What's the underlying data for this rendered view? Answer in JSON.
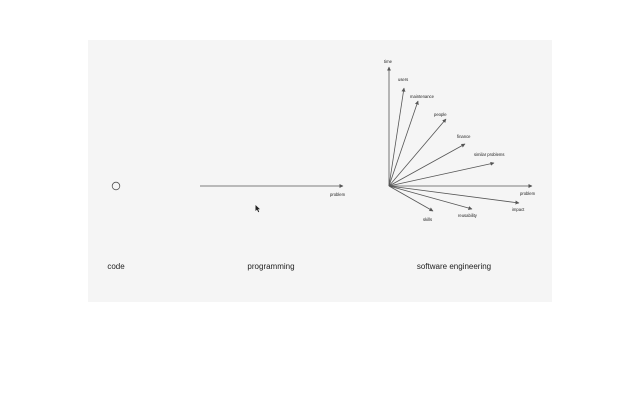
{
  "panels": {
    "code": {
      "caption": "code"
    },
    "programming": {
      "caption": "programming",
      "vector_label": "problem"
    },
    "software_engineering": {
      "caption": "software engineering",
      "vectors": [
        {
          "label": "time"
        },
        {
          "label": "users"
        },
        {
          "label": "maintenance"
        },
        {
          "label": "people"
        },
        {
          "label": "finance"
        },
        {
          "label": "similar problems"
        },
        {
          "label": "problem"
        },
        {
          "label": "impact"
        },
        {
          "label": "reusability"
        },
        {
          "label": "skills"
        }
      ]
    }
  },
  "colors": {
    "line": "#555555",
    "text": "#222222",
    "background": "#f5f5f5"
  }
}
